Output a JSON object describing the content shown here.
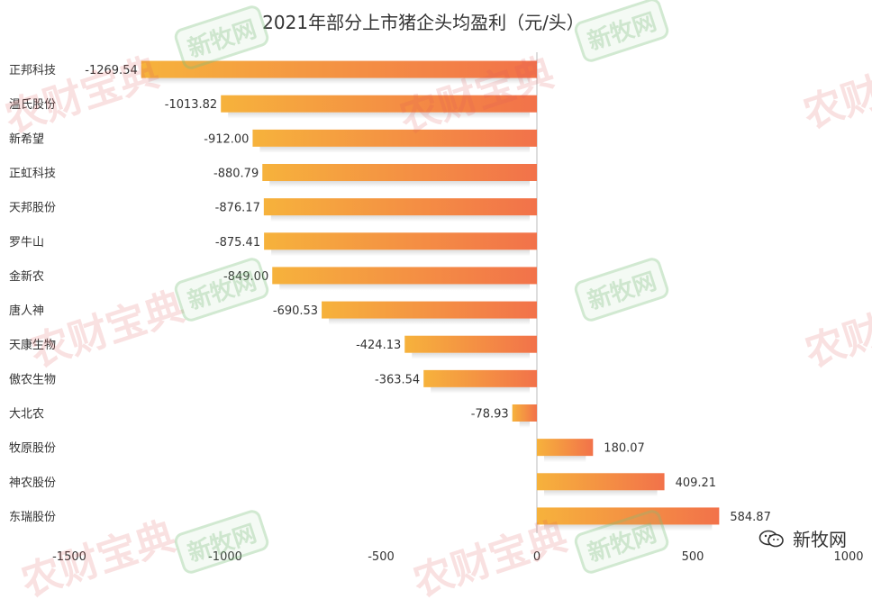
{
  "chart_data": {
    "type": "bar",
    "orientation": "horizontal",
    "title": "2021年部分上市猪企头均盈利（元/头）",
    "categories": [
      "正邦科技",
      "温氏股份",
      "新希望",
      "正虹科技",
      "天邦股份",
      "罗牛山",
      "金新农",
      "唐人神",
      "天康生物",
      "傲农生物",
      "大北农",
      "牧原股份",
      "神农股份",
      "东瑞股份"
    ],
    "values": [
      -1269.54,
      -1013.82,
      -912.0,
      -880.79,
      -876.17,
      -875.41,
      -849.0,
      -690.53,
      -424.13,
      -363.54,
      -78.93,
      180.07,
      409.21,
      584.87
    ],
    "value_labels": [
      "-1269.54",
      "-1013.82",
      "-912.00",
      "-880.79",
      "-876.17",
      "-875.41",
      "-849.00",
      "-690.53",
      "-424.13",
      "-363.54",
      "-78.93",
      "180.07",
      "409.21",
      "584.87"
    ],
    "xlim": [
      -1500,
      1000
    ],
    "x_ticks": [
      "-1500",
      "-1000",
      "-500",
      "0",
      "500",
      "1000"
    ],
    "x_tick_values": [
      -1500,
      -1000,
      -500,
      0,
      500,
      1000
    ],
    "grid": false,
    "colors": {
      "bar_start": "#F6B23C",
      "bar_end": "#F2724A",
      "axis": "#bbbbbb",
      "text": "#333333"
    }
  },
  "watermarks": {
    "a": "农财宝典",
    "b": "新牧网"
  },
  "brand": {
    "label": "新牧网",
    "icon": "wechat-icon"
  }
}
